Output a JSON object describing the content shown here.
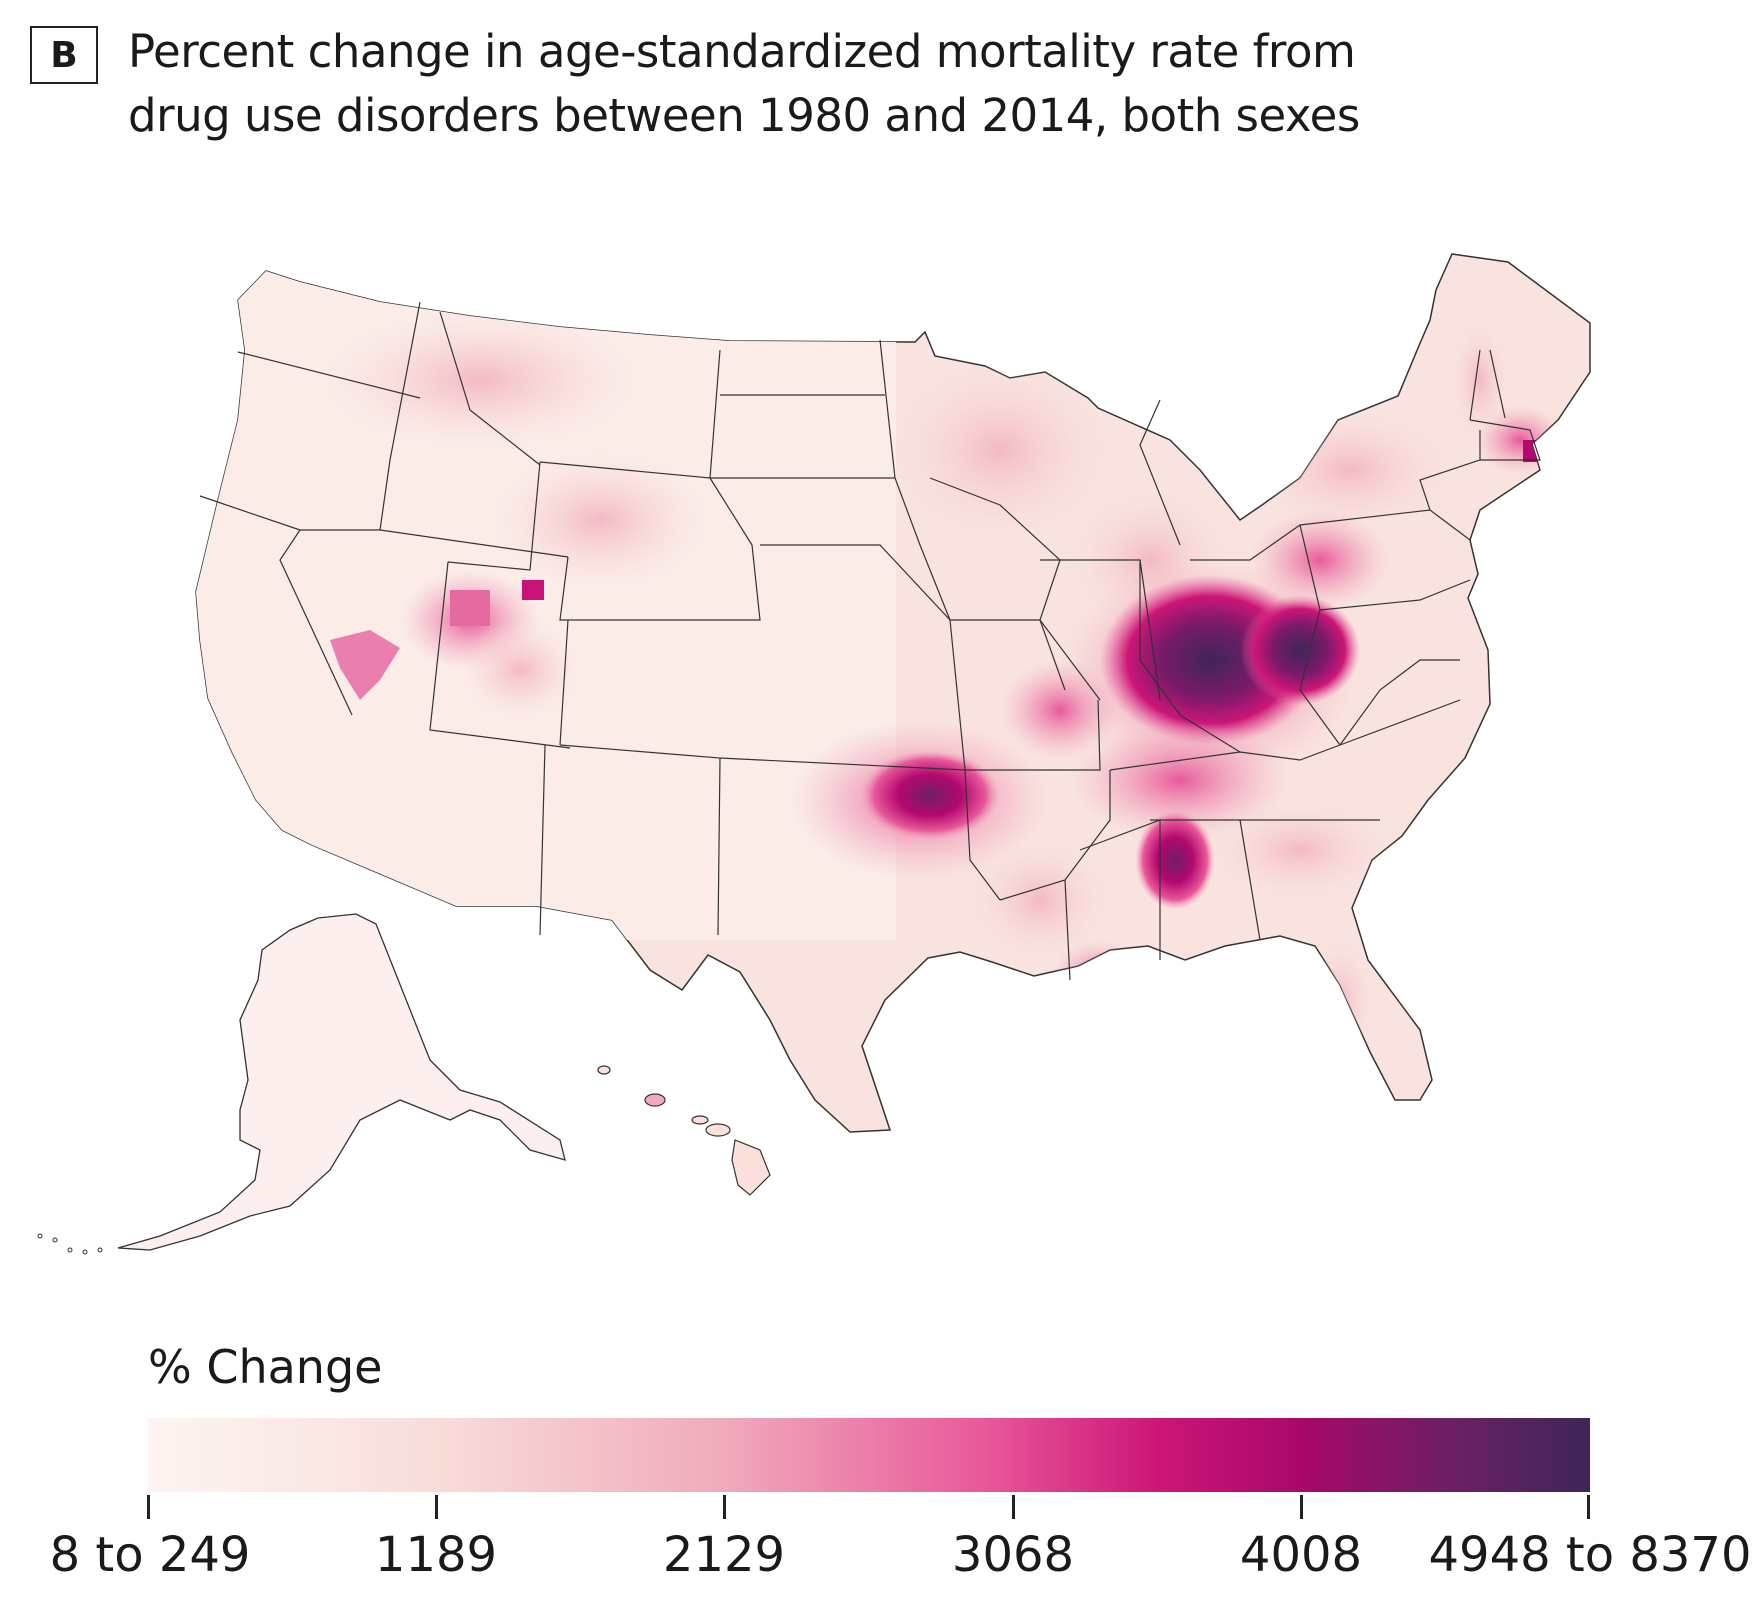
{
  "panel": {
    "letter": "B"
  },
  "title": {
    "line1": "Percent change in age-standardized mortality rate from",
    "line2": "drug use disorders between 1980 and 2014, both sexes"
  },
  "map": {
    "region": "United States counties",
    "colors": {
      "low": "#fdf5f3",
      "light": "#f5cbc8",
      "mid": "#ec89ad",
      "high": "#d2237f",
      "higher": "#a60f6b",
      "highest": "#3d2658",
      "border": "#333333"
    }
  },
  "legend": {
    "title": "% Change",
    "ticks": [
      "8 to 249",
      "1189",
      "2129",
      "3068",
      "4008",
      "4948 to 8370"
    ],
    "gradient_colors": [
      "#fdf5f3",
      "#f8ddd8",
      "#f0aabb",
      "#e8589a",
      "#cc1677",
      "#a8086a",
      "#6e1f66",
      "#3d2658"
    ]
  }
}
